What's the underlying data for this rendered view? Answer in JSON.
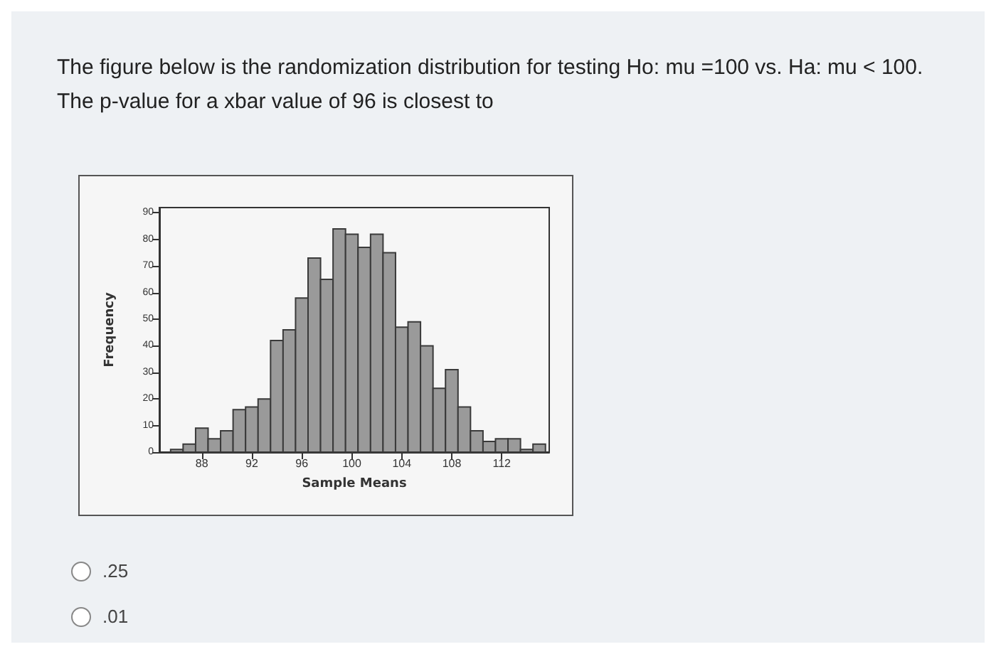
{
  "chart_data": {
    "type": "histogram",
    "title": "The figure below is the randomization distribution for testing Ho: mu =100 vs. Ha: mu < 100. The p-value for a xbar value of 96 is closest to",
    "xlabel": "Sample Means",
    "ylabel": "Frequency",
    "bins": [
      85.5,
      86.5,
      87.5,
      88.5,
      89.5,
      90.5,
      91.5,
      92.5,
      93.5,
      94.5,
      95.5,
      96.5,
      97.5,
      98.5,
      99.5,
      100.5,
      101.5,
      102.5,
      103.5,
      104.5,
      105.5,
      106.5,
      107.5,
      108.5,
      109.5,
      110.5,
      111.5,
      112.5,
      113.5,
      114.5,
      115.5
    ],
    "values": [
      1,
      3,
      9,
      5,
      8,
      16,
      17,
      20,
      42,
      46,
      58,
      73,
      65,
      84,
      82,
      77,
      82,
      75,
      47,
      49,
      40,
      24,
      31,
      17,
      8,
      4,
      5,
      5,
      1,
      3
    ],
    "color": "#9a9a9a",
    "xlim": [
      84.6,
      115.8
    ],
    "xticks": [
      88,
      92,
      96,
      100,
      104,
      108,
      112
    ],
    "ylim": [
      0,
      92
    ],
    "yticks": [
      0,
      10,
      20,
      30,
      40,
      50,
      60,
      70,
      80,
      90
    ],
    "grid": false,
    "annotations": [
      ".25",
      ".01"
    ]
  }
}
